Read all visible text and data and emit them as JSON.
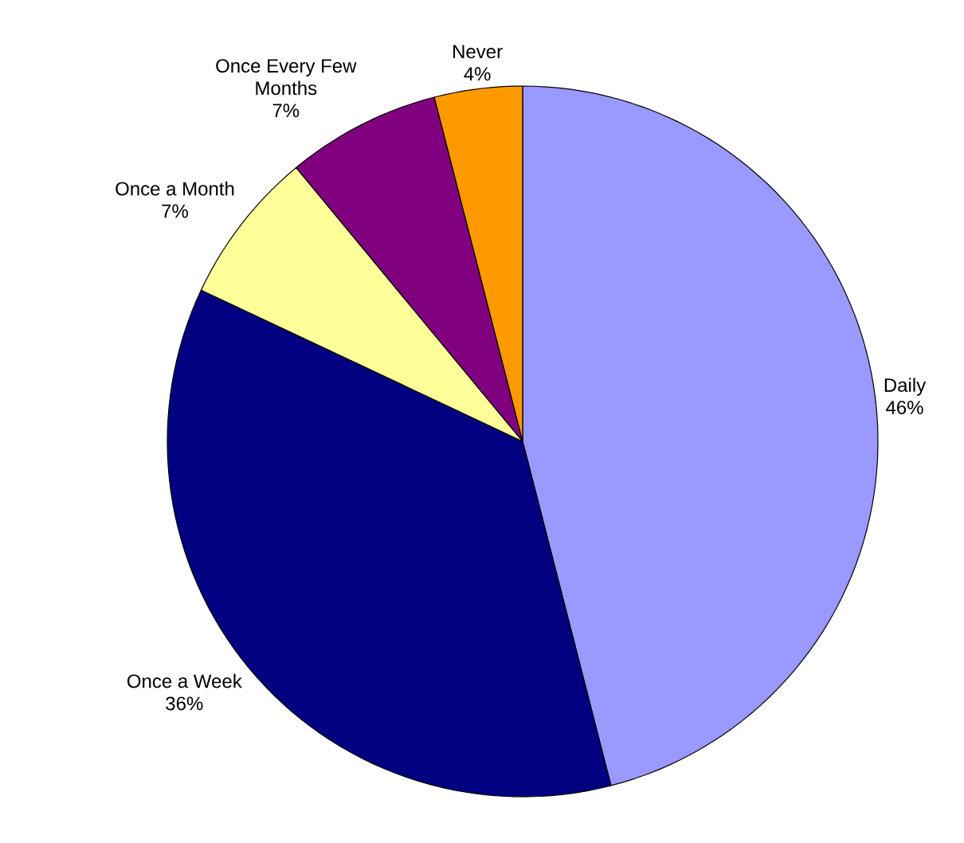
{
  "chart_data": {
    "type": "pie",
    "categories": [
      "Daily",
      "Once a Week",
      "Once a Month",
      "Once Every Few Months",
      "Never"
    ],
    "values": [
      46,
      36,
      7,
      7,
      4
    ],
    "colors": [
      "#9999ff",
      "#000080",
      "#ffff99",
      "#800080",
      "#ff9900"
    ],
    "value_labels": [
      "46%",
      "36%",
      "7%",
      "7%",
      "4%"
    ]
  }
}
